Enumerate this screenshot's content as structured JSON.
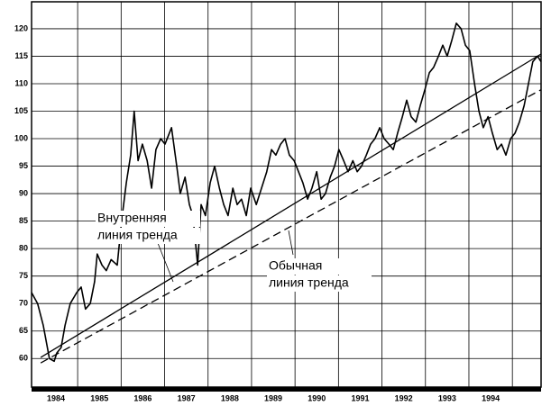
{
  "chart_data": {
    "type": "line",
    "x": [
      1983.94,
      1984.08,
      1984.21,
      1984.35,
      1984.46,
      1984.52,
      1984.62,
      1984.71,
      1984.83,
      1984.98,
      1985.08,
      1985.18,
      1985.29,
      1985.39,
      1985.45,
      1985.56,
      1985.66,
      1985.77,
      1985.91,
      1986.01,
      1986.12,
      1986.22,
      1986.3,
      1986.39,
      1986.49,
      1986.6,
      1986.7,
      1986.8,
      1986.91,
      1987.01,
      1987.16,
      1987.28,
      1987.36,
      1987.47,
      1987.57,
      1987.65,
      1987.76,
      1987.84,
      1987.94,
      1988.05,
      1988.15,
      1988.26,
      1988.36,
      1988.46,
      1988.57,
      1988.67,
      1988.77,
      1988.88,
      1988.98,
      1989.11,
      1989.23,
      1989.35,
      1989.46,
      1989.56,
      1989.67,
      1989.77,
      1989.87,
      1989.98,
      1990.08,
      1990.18,
      1990.29,
      1990.39,
      1990.5,
      1990.6,
      1990.7,
      1990.81,
      1990.91,
      1991.01,
      1991.12,
      1991.22,
      1991.33,
      1991.43,
      1991.53,
      1991.64,
      1991.74,
      1991.84,
      1991.95,
      1992.05,
      1992.16,
      1992.26,
      1992.36,
      1992.47,
      1992.57,
      1992.67,
      1992.78,
      1992.88,
      1992.99,
      1993.09,
      1993.19,
      1993.3,
      1993.4,
      1993.5,
      1993.61,
      1993.71,
      1993.82,
      1993.92,
      1994.02,
      1994.13,
      1994.23,
      1994.33,
      1994.44,
      1994.54,
      1994.65,
      1994.75,
      1994.85,
      1994.96,
      1995.06,
      1995.16,
      1995.27,
      1995.37,
      1995.47,
      1995.58,
      1995.66
    ],
    "series": [
      {
        "color": "#000000",
        "values": [
          72,
          70,
          66,
          60,
          59.5,
          61,
          62,
          66,
          70,
          72,
          73,
          69,
          70,
          74,
          79,
          77,
          76,
          78,
          77,
          85,
          92,
          97,
          105,
          96,
          99,
          96,
          91,
          98,
          100,
          99,
          102,
          95,
          90,
          93,
          88,
          86,
          77,
          88,
          86,
          92,
          95,
          91,
          88,
          86,
          91,
          88,
          89,
          86,
          91,
          88,
          91,
          94,
          98,
          97,
          99,
          100,
          97,
          96,
          94,
          92,
          89,
          91,
          94,
          89,
          90,
          93,
          95,
          98,
          96,
          94,
          96,
          94,
          95,
          97,
          99,
          100,
          102,
          100,
          99,
          98,
          101,
          104,
          107,
          104,
          103,
          106,
          109,
          112,
          113,
          115,
          117,
          115,
          118,
          121,
          120,
          117,
          116,
          110,
          105,
          102,
          104,
          101,
          98,
          99,
          97,
          100,
          101,
          103,
          106,
          110,
          114,
          115,
          114
        ]
      }
    ],
    "trendlines": [
      {
        "label": [
          "Внутренняя",
          "линия тренда"
        ],
        "x": [
          1984.15,
          1995.66
        ],
        "values": [
          60.2,
          115.4
        ],
        "dashed": false
      },
      {
        "label": [
          "Обычная",
          "линия тренда"
        ],
        "x": [
          1984.15,
          1995.66
        ],
        "values": [
          59.2,
          108.9
        ],
        "dashed": true
      }
    ],
    "xlim": [
      1983.94,
      1995.66
    ],
    "ylim": [
      54.8,
      124.9
    ],
    "yticks": [
      60,
      65,
      70,
      75,
      80,
      85,
      90,
      95,
      100,
      105,
      110,
      115,
      120
    ],
    "xticks": [
      {
        "value": 1984.5,
        "label": "1984"
      },
      {
        "value": 1985.5,
        "label": "1985"
      },
      {
        "value": 1986.5,
        "label": "1986"
      },
      {
        "value": 1987.5,
        "label": "1987"
      },
      {
        "value": 1988.5,
        "label": "1988"
      },
      {
        "value": 1989.5,
        "label": "1989"
      },
      {
        "value": 1990.5,
        "label": "1990"
      },
      {
        "value": 1991.5,
        "label": "1991"
      },
      {
        "value": 1992.5,
        "label": "1992"
      },
      {
        "value": 1993.5,
        "label": "1993"
      },
      {
        "value": 1994.5,
        "label": "1994"
      }
    ],
    "x_gridlines": [
      1985,
      1986,
      1987,
      1988,
      1989,
      1990,
      1991,
      1992,
      1993,
      1994,
      1995
    ],
    "grid": true
  }
}
